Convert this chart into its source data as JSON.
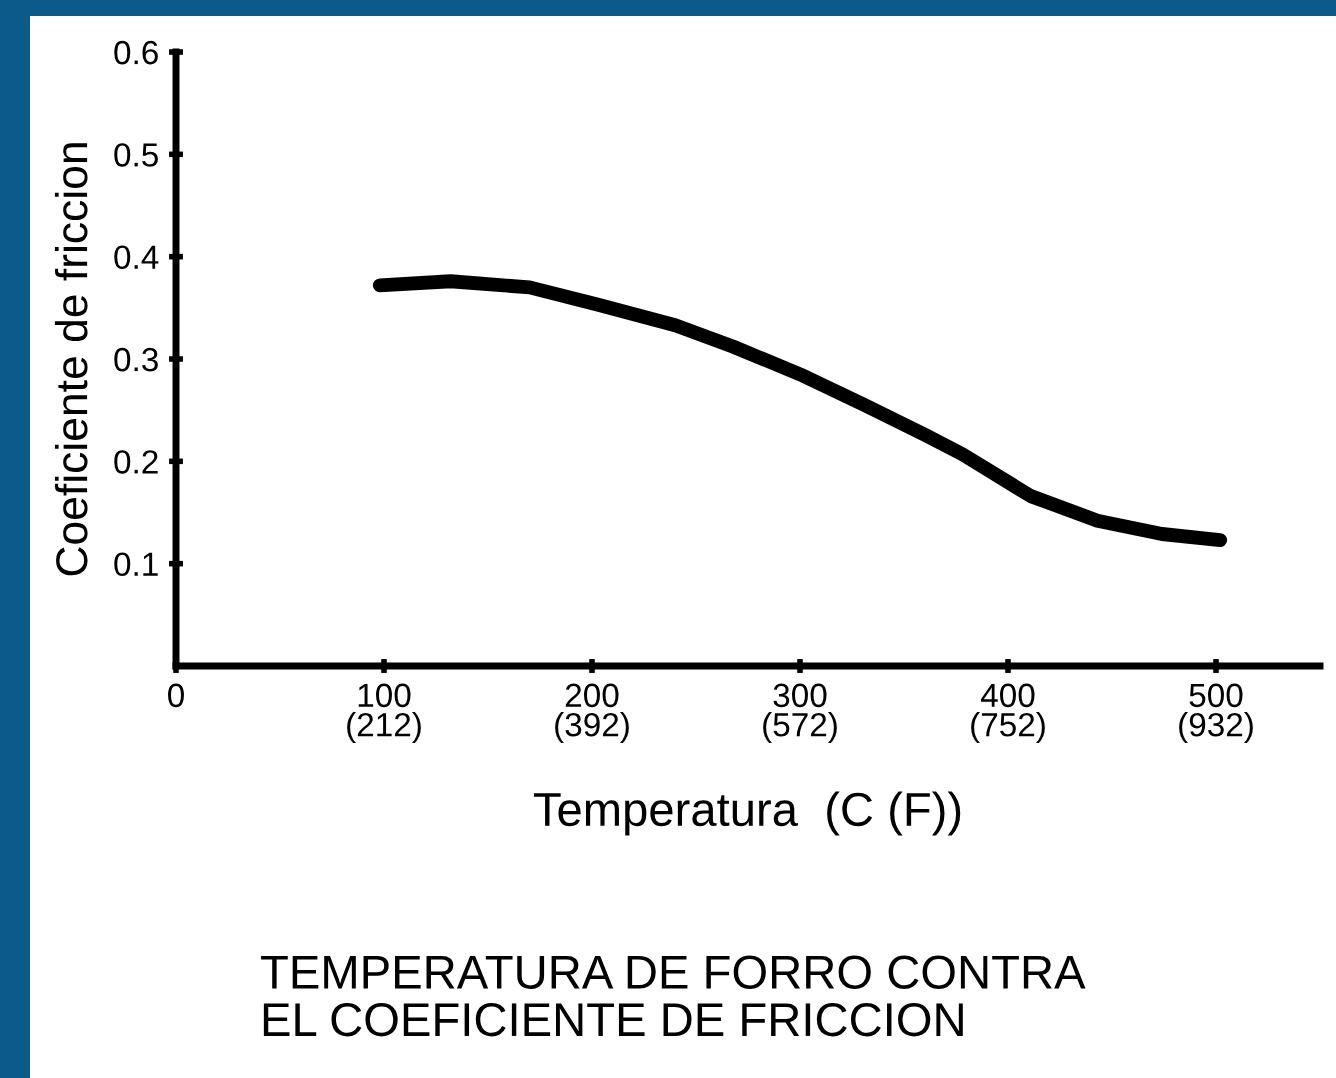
{
  "chart_data": {
    "type": "line",
    "title": "TEMPERATURA DE FORRO CONTRA\nEL COEFICIENTE DE FRICCION",
    "xlabel": "Temperatura  (C (F))",
    "ylabel": "Coeficiente de friccion",
    "x": [
      98,
      132,
      170,
      203,
      240,
      268,
      300,
      331,
      360,
      378,
      411,
      443,
      474,
      502
    ],
    "series": [
      {
        "color": "#000000",
        "values": [
          0.372,
          0.376,
          0.37,
          0.353,
          0.333,
          0.312,
          0.285,
          0.255,
          0.226,
          0.207,
          0.166,
          0.142,
          0.129,
          0.123
        ]
      }
    ],
    "xlim": [
      0,
      550
    ],
    "xticks": [
      0,
      100,
      200,
      300,
      400,
      500
    ],
    "x2lim": [
      32,
      1022
    ],
    "x2ticks": [
      {
        "value": 212,
        "label": "(212)"
      },
      {
        "value": 392,
        "label": "(392)"
      },
      {
        "value": 572,
        "label": "(572)"
      },
      {
        "value": 752,
        "label": "(752)"
      },
      {
        "value": 932,
        "label": "(932)"
      }
    ],
    "ylim": [
      0,
      0.6
    ],
    "yticks": [
      0.1,
      0.2,
      0.3,
      0.4,
      0.5,
      0.6
    ],
    "grid": false,
    "legend": false,
    "marker": "none",
    "line_style": "solid"
  }
}
